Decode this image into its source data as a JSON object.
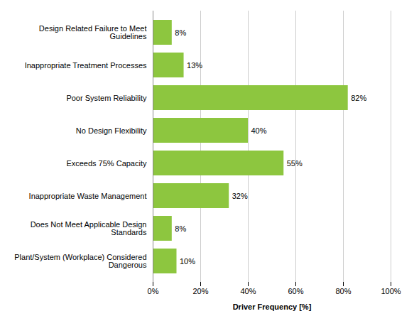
{
  "chart_data": {
    "type": "bar",
    "orientation": "horizontal",
    "categories": [
      "Plant/System (Workplace) Considered\nDangerous",
      "Does Not Meet Applicable Design\nStandards",
      "Inappropriate Waste Management",
      "Exceeds 75% Capacity",
      "No Design Flexibility",
      "Poor System Reliability",
      "Inappropriate Treatment Processes",
      "Design Related Failure to Meet\nGuidelines"
    ],
    "values": [
      10,
      8,
      32,
      55,
      40,
      82,
      13,
      8
    ],
    "value_labels": [
      "10%",
      "8%",
      "32%",
      "55%",
      "40%",
      "82%",
      "13%",
      "8%"
    ],
    "data_labels": true,
    "color": "#8DC63F",
    "xlabel": "Driver Frequency [%]",
    "xlim": [
      0,
      100
    ],
    "xticks": [
      {
        "value": 0,
        "label": "0%"
      },
      {
        "value": 20,
        "label": "20%"
      },
      {
        "value": 40,
        "label": "40%"
      },
      {
        "value": 60,
        "label": "60%"
      },
      {
        "value": 80,
        "label": "80%"
      },
      {
        "value": 100,
        "label": "100%"
      }
    ],
    "grid": true
  }
}
